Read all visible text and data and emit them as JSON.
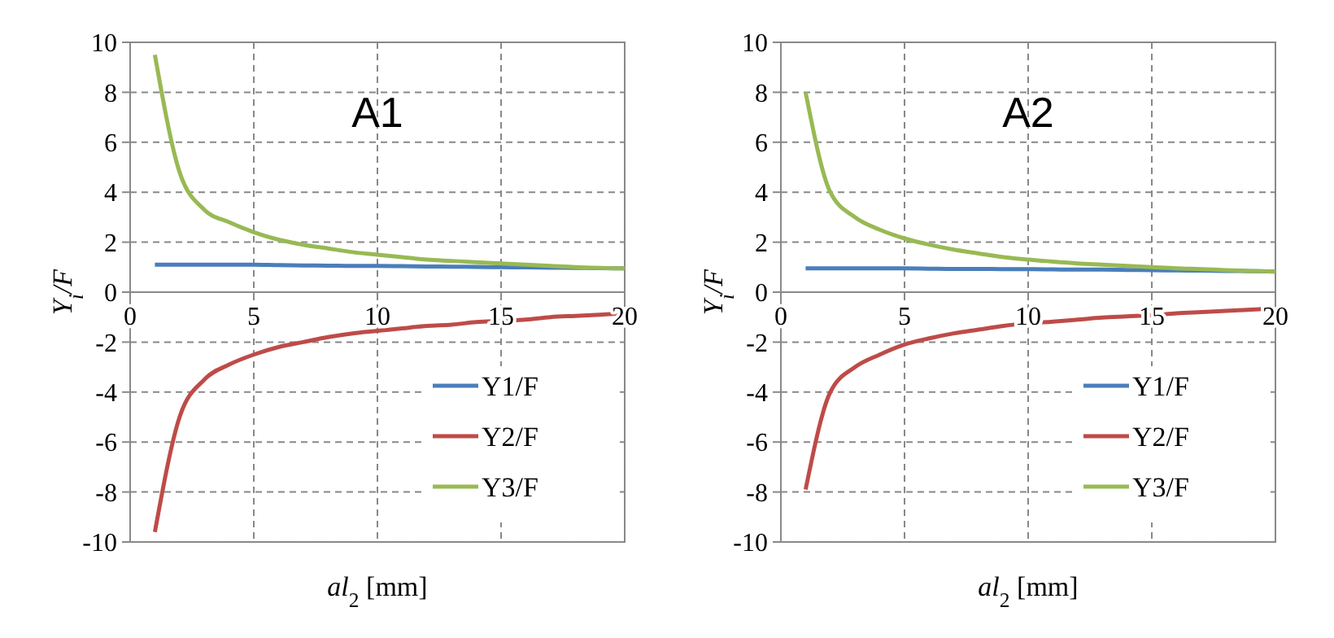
{
  "chart_data": [
    {
      "type": "line",
      "title": "A1",
      "xlabel": "al$_{2}$ [mm]",
      "ylabel": "Y$_{i}$/F",
      "x": [
        1,
        2,
        3,
        4,
        5,
        6,
        7,
        8,
        9,
        10,
        11,
        12,
        13,
        14,
        15,
        16,
        17,
        18,
        19,
        20
      ],
      "xlim": [
        0,
        20
      ],
      "xticks": [
        0,
        5,
        10,
        15,
        20
      ],
      "ylim": [
        -10,
        10
      ],
      "yticks": [
        -10,
        -8,
        -6,
        -4,
        -2,
        0,
        2,
        4,
        6,
        8,
        10
      ],
      "grid": true,
      "legend": "bottom right",
      "marker": "none",
      "line_style": "solid",
      "series": [
        {
          "name": "Y1/F",
          "color": "#4a7ebb",
          "values": [
            1.1,
            1.1,
            1.1,
            1.1,
            1.1,
            1.08,
            1.07,
            1.06,
            1.05,
            1.05,
            1.04,
            1.03,
            1.02,
            1.01,
            1.0,
            0.99,
            0.98,
            0.97,
            0.96,
            0.95
          ]
        },
        {
          "name": "Y2/F",
          "color": "#be4b48",
          "values": [
            -9.6,
            -5.0,
            -3.5,
            -2.9,
            -2.5,
            -2.2,
            -2.0,
            -1.8,
            -1.65,
            -1.55,
            -1.45,
            -1.35,
            -1.3,
            -1.2,
            -1.15,
            -1.1,
            -1.0,
            -0.95,
            -0.9,
            -0.85
          ]
        },
        {
          "name": "Y3/F",
          "color": "#98b954",
          "values": [
            9.5,
            4.8,
            3.3,
            2.8,
            2.4,
            2.1,
            1.9,
            1.75,
            1.6,
            1.5,
            1.4,
            1.3,
            1.25,
            1.2,
            1.15,
            1.1,
            1.05,
            1.0,
            0.97,
            0.95
          ]
        }
      ]
    },
    {
      "type": "line",
      "title": "A2",
      "xlabel": "al$_{2}$ [mm]",
      "ylabel": "Y$_{i}$/F",
      "x": [
        1,
        2,
        3,
        4,
        5,
        6,
        7,
        8,
        9,
        10,
        11,
        12,
        13,
        14,
        15,
        16,
        17,
        18,
        19,
        20
      ],
      "xlim": [
        0,
        20
      ],
      "xticks": [
        0,
        5,
        10,
        15,
        20
      ],
      "ylim": [
        -10,
        10
      ],
      "yticks": [
        -10,
        -8,
        -6,
        -4,
        -2,
        0,
        2,
        4,
        6,
        8,
        10
      ],
      "grid": true,
      "legend": "bottom right",
      "marker": "none",
      "line_style": "solid",
      "series": [
        {
          "name": "Y1/F",
          "color": "#4a7ebb",
          "values": [
            0.95,
            0.95,
            0.95,
            0.95,
            0.95,
            0.94,
            0.93,
            0.93,
            0.92,
            0.92,
            0.91,
            0.9,
            0.9,
            0.89,
            0.88,
            0.87,
            0.86,
            0.85,
            0.84,
            0.82
          ]
        },
        {
          "name": "Y2/F",
          "color": "#be4b48",
          "values": [
            -7.9,
            -4.0,
            -3.0,
            -2.5,
            -2.1,
            -1.85,
            -1.65,
            -1.5,
            -1.35,
            -1.25,
            -1.18,
            -1.1,
            -1.02,
            -0.97,
            -0.92,
            -0.85,
            -0.8,
            -0.75,
            -0.7,
            -0.65
          ]
        },
        {
          "name": "Y3/F",
          "color": "#98b954",
          "values": [
            8.0,
            4.0,
            3.0,
            2.5,
            2.15,
            1.9,
            1.7,
            1.55,
            1.4,
            1.3,
            1.22,
            1.15,
            1.1,
            1.05,
            1.0,
            0.95,
            0.92,
            0.88,
            0.85,
            0.82
          ]
        }
      ]
    }
  ]
}
